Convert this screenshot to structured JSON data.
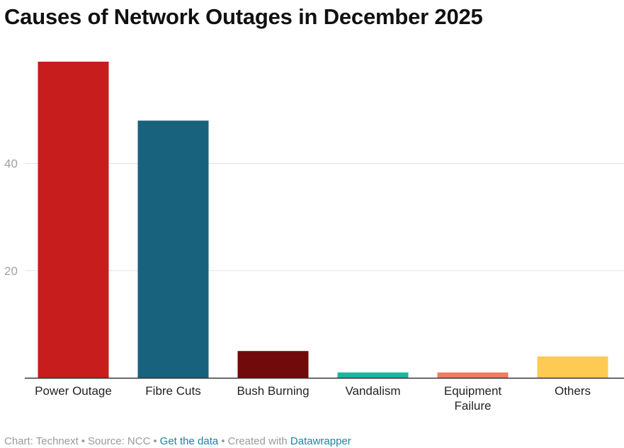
{
  "title": "Causes of Network Outages in December 2025",
  "chart_data": {
    "type": "bar",
    "title": "Causes of Network Outages in December 2025",
    "xlabel": "",
    "ylabel": "",
    "categories": [
      "Power Outage",
      "Fibre Cuts",
      "Bush Burning",
      "Vandalism",
      "Equipment Failure",
      "Others"
    ],
    "category_lines": [
      [
        "Power Outage"
      ],
      [
        "Fibre Cuts"
      ],
      [
        "Bush Burning"
      ],
      [
        "Vandalism"
      ],
      [
        "Equipment",
        "Failure"
      ],
      [
        "Others"
      ]
    ],
    "values": [
      59,
      48,
      5,
      1,
      1,
      4
    ],
    "colors": [
      "#c71e1d",
      "#18627e",
      "#710b0b",
      "#15b8a0",
      "#ef7c63",
      "#fdcb51"
    ],
    "ylim": [
      0,
      59
    ],
    "yticks": [
      20,
      40
    ],
    "grid": true,
    "legend": "none"
  },
  "footer": {
    "chart_credit": "Chart: Technext",
    "source": "Source: NCC",
    "get_data": "Get the data",
    "created_with": "Created with",
    "tool": "Datawrapper",
    "separator": "•"
  }
}
